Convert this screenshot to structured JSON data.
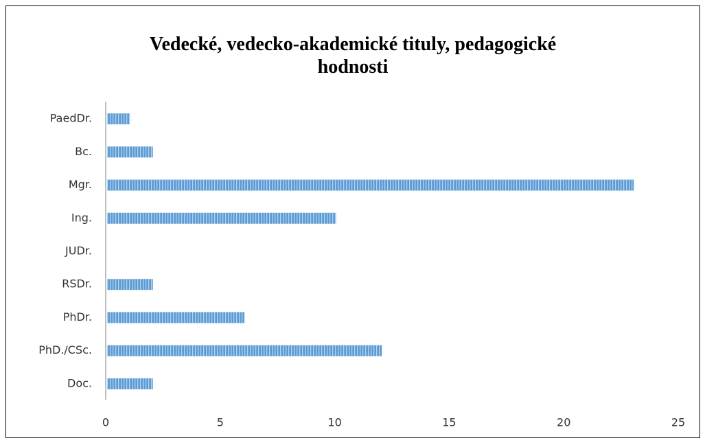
{
  "chart_data": {
    "type": "barh",
    "title": "Vedecké, vedecko-akademické tituly, pedagogické hodnosti",
    "categories": [
      "PaedDr.",
      "Bc.",
      "Mgr.",
      "Ing.",
      "JUDr.",
      "RSDr.",
      "PhDr.",
      "PhD./CSc.",
      "Doc."
    ],
    "values": [
      1,
      2,
      23,
      10,
      0,
      2,
      6,
      12,
      2
    ],
    "color": "#5b9bd5",
    "xlim": [
      0,
      25
    ],
    "xticks": [
      0,
      5,
      10,
      15,
      20,
      25
    ],
    "grid": false
  }
}
